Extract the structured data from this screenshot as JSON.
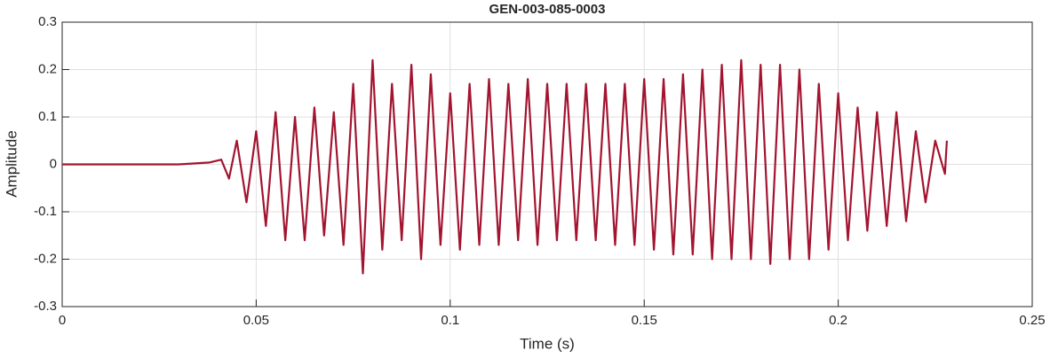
{
  "chart_data": {
    "type": "line",
    "title": "GEN-003-085-0003",
    "xlabel": "Time (s)",
    "ylabel": "Amplitude",
    "color": "#a2142f",
    "grid": true,
    "xlim": [
      0,
      0.25
    ],
    "xticks": [
      0,
      0.05,
      0.1,
      0.15,
      0.2,
      0.25
    ],
    "ylim": [
      -0.3,
      0.3
    ],
    "yticks": [
      -0.3,
      -0.2,
      -0.1,
      0,
      0.1,
      0.2,
      0.3
    ],
    "x": [
      0,
      0.01,
      0.02,
      0.03,
      0.038,
      0.041,
      0.043,
      0.045,
      0.0475,
      0.05,
      0.0525,
      0.055,
      0.0575,
      0.06,
      0.0625,
      0.065,
      0.0675,
      0.07,
      0.0725,
      0.075,
      0.0775,
      0.08,
      0.0825,
      0.085,
      0.0875,
      0.09,
      0.0925,
      0.095,
      0.0975,
      0.1,
      0.1025,
      0.105,
      0.1075,
      0.11,
      0.1125,
      0.115,
      0.1175,
      0.12,
      0.1225,
      0.125,
      0.1275,
      0.13,
      0.1325,
      0.135,
      0.1375,
      0.14,
      0.1425,
      0.145,
      0.1475,
      0.15,
      0.1525,
      0.155,
      0.1575,
      0.16,
      0.1625,
      0.165,
      0.1675,
      0.17,
      0.1725,
      0.175,
      0.1775,
      0.18,
      0.1825,
      0.185,
      0.1875,
      0.19,
      0.1925,
      0.195,
      0.1975,
      0.2,
      0.2025,
      0.205,
      0.2075,
      0.21,
      0.2125,
      0.215,
      0.2175,
      0.22,
      0.2225,
      0.225,
      0.2275,
      0.228
    ],
    "values": [
      0,
      0,
      0,
      0,
      0.004,
      0.01,
      -0.03,
      0.05,
      -0.08,
      0.07,
      -0.13,
      0.11,
      -0.16,
      0.1,
      -0.16,
      0.12,
      -0.15,
      0.11,
      -0.17,
      0.17,
      -0.23,
      0.22,
      -0.18,
      0.17,
      -0.16,
      0.21,
      -0.2,
      0.19,
      -0.17,
      0.15,
      -0.18,
      0.17,
      -0.17,
      0.18,
      -0.17,
      0.17,
      -0.16,
      0.18,
      -0.17,
      0.17,
      -0.16,
      0.17,
      -0.16,
      0.17,
      -0.16,
      0.17,
      -0.17,
      0.17,
      -0.17,
      0.18,
      -0.18,
      0.18,
      -0.19,
      0.19,
      -0.19,
      0.2,
      -0.2,
      0.21,
      -0.2,
      0.22,
      -0.2,
      0.21,
      -0.21,
      0.21,
      -0.2,
      0.2,
      -0.2,
      0.17,
      -0.18,
      0.15,
      -0.16,
      0.12,
      -0.14,
      0.11,
      -0.13,
      0.11,
      -0.12,
      0.07,
      -0.08,
      0.05,
      -0.02,
      0.05
    ]
  }
}
